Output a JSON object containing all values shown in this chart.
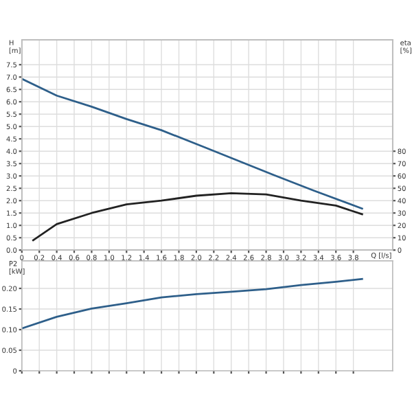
{
  "chart_data": [
    {
      "type": "line",
      "ylabel": "H\n[m]",
      "y2label": "eta\n[%]",
      "xlabel": "Q [l/s]",
      "grid": true,
      "legend": false,
      "marker": "none",
      "xlim": [
        0,
        4.25
      ],
      "xticks": [
        0,
        0.2,
        0.4,
        0.6,
        0.8,
        {
          "value": 1,
          "label": "1.0"
        },
        1.2,
        1.4,
        1.6,
        1.8,
        {
          "value": 2,
          "label": "2.0"
        },
        2.2,
        2.4,
        2.6,
        2.8,
        {
          "value": 3,
          "label": "3.0"
        },
        3.2,
        3.4,
        3.6,
        3.8
      ],
      "ylim": [
        0,
        8.5
      ],
      "yticks": [
        {
          "value": 0,
          "label": "0.0"
        },
        0.5,
        {
          "value": 1,
          "label": "1.0"
        },
        1.5,
        {
          "value": 2,
          "label": "2.0"
        },
        2.5,
        {
          "value": 3,
          "label": "3.0"
        },
        3.5,
        {
          "value": 4,
          "label": "4.0"
        },
        4.5,
        {
          "value": 5,
          "label": "5.0"
        },
        5.5,
        {
          "value": 6,
          "label": "6.0"
        },
        6.5,
        {
          "value": 7,
          "label": "7.0"
        },
        7.5
      ],
      "y2lim": [
        0,
        170
      ],
      "y2ticks": [
        0,
        10,
        20,
        30,
        40,
        50,
        60,
        70,
        80
      ],
      "series": [
        {
          "color": "#2e5f8a",
          "x": [
            0,
            0.4,
            0.8,
            1.2,
            1.6,
            2.1,
            2.9,
            3.35,
            3.9
          ],
          "values": [
            6.93,
            6.25,
            5.8,
            5.3,
            4.85,
            4.15,
            3.02,
            2.4,
            1.68
          ]
        },
        {
          "color": "#222222",
          "axis": "y2",
          "x": [
            0.13,
            0.4,
            0.8,
            1.2,
            1.6,
            2.0,
            2.4,
            2.8,
            3.2,
            3.6,
            3.9
          ],
          "values": [
            8,
            21,
            30,
            37,
            40,
            44,
            46,
            45,
            40,
            36,
            29
          ]
        }
      ]
    },
    {
      "type": "line",
      "ylabel": "P2\n[kW]",
      "grid": true,
      "legend": false,
      "marker": "none",
      "tick_labels": "y",
      "xlim": [
        0,
        4.25
      ],
      "xticks": [
        0,
        0.2,
        0.4,
        0.6,
        0.8,
        1.0,
        1.2,
        1.4,
        1.6,
        1.8,
        2.0,
        2.2,
        2.4,
        2.6,
        2.8,
        3.0,
        3.2,
        3.4,
        3.6,
        3.8
      ],
      "ylim": [
        0,
        0.267
      ],
      "yticks": [
        0,
        0.05,
        {
          "value": 0.1,
          "label": "0.10"
        },
        0.15,
        {
          "value": 0.2,
          "label": "0.20"
        }
      ],
      "series": [
        {
          "color": "#2e5f8a",
          "x": [
            0,
            0.4,
            0.8,
            1.2,
            1.6,
            2.0,
            2.4,
            2.8,
            3.2,
            3.6,
            3.9
          ],
          "values": [
            0.103,
            0.131,
            0.151,
            0.164,
            0.178,
            0.186,
            0.192,
            0.198,
            0.208,
            0.216,
            0.223
          ]
        }
      ]
    }
  ]
}
